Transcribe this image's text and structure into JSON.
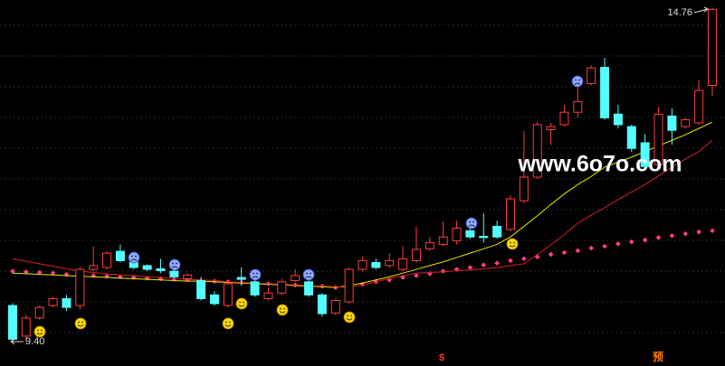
{
  "chart_data": {
    "type": "candlestick",
    "ylim": [
      9.01,
      14.88
    ],
    "up_color": "#ff3c3c",
    "down_color": "#54ffff",
    "open": [
      9.98,
      9.49,
      9.78,
      9.98,
      10.09,
      9.98,
      10.56,
      10.59,
      10.85,
      10.67,
      10.62,
      10.57,
      10.53,
      10.41,
      10.38,
      10.15,
      9.98,
      10.43,
      10.36,
      10.09,
      10.18,
      10.38,
      10.36,
      10.15,
      9.86,
      10.04,
      10.56,
      10.67,
      10.62,
      10.56,
      10.7,
      10.89,
      10.96,
      11.02,
      11.18,
      11.09,
      11.25,
      11.2,
      11.66,
      12.04,
      12.8,
      12.88,
      13.08,
      13.54,
      13.8,
      13.05,
      12.85,
      12.59,
      12.24,
      13.02,
      12.85,
      12.91,
      13.51
    ],
    "high": [
      10.02,
      9.83,
      9.98,
      10.12,
      10.15,
      10.6,
      10.93,
      10.85,
      10.96,
      10.73,
      10.64,
      10.73,
      10.67,
      10.5,
      10.44,
      10.21,
      10.36,
      10.59,
      10.41,
      10.27,
      10.41,
      10.56,
      10.38,
      10.18,
      10.09,
      10.59,
      10.76,
      10.73,
      10.82,
      10.93,
      11.25,
      11.08,
      11.33,
      11.34,
      11.28,
      11.46,
      11.34,
      11.75,
      12.78,
      12.93,
      12.91,
      13.2,
      13.57,
      13.83,
      13.95,
      13.2,
      12.88,
      12.73,
      13.17,
      13.14,
      12.99,
      13.6,
      14.76
    ],
    "low": [
      9.4,
      9.43,
      9.75,
      9.95,
      9.89,
      9.92,
      10.53,
      10.56,
      10.67,
      10.56,
      10.53,
      10.5,
      10.41,
      10.36,
      10.06,
      9.98,
      9.95,
      10.3,
      10.12,
      10.06,
      10.15,
      10.36,
      10.12,
      9.8,
      9.83,
      10.01,
      10.53,
      10.56,
      10.59,
      10.53,
      10.67,
      10.86,
      10.93,
      10.96,
      11.05,
      10.99,
      11.05,
      11.17,
      11.62,
      12.01,
      12.56,
      12.85,
      12.99,
      13.51,
      12.96,
      12.82,
      12.44,
      12.18,
      12.21,
      12.56,
      12.82,
      12.88,
      13.34
    ],
    "close": [
      9.44,
      9.78,
      9.95,
      10.09,
      9.95,
      10.56,
      10.62,
      10.82,
      10.7,
      10.59,
      10.56,
      10.54,
      10.44,
      10.47,
      10.09,
      10.01,
      10.33,
      10.4,
      10.15,
      10.18,
      10.36,
      10.46,
      10.15,
      9.85,
      10.06,
      10.56,
      10.7,
      10.59,
      10.7,
      10.73,
      10.88,
      10.99,
      11.08,
      11.22,
      11.08,
      11.07,
      11.08,
      11.69,
      12.04,
      12.88,
      12.85,
      13.08,
      13.25,
      13.79,
      12.99,
      12.88,
      12.5,
      12.21,
      13.05,
      12.79,
      12.96,
      13.43,
      14.73
    ],
    "lines": [
      {
        "color": "#e8e800",
        "values": [
          10.5,
          10.49,
          10.48,
          10.47,
          10.46,
          10.45,
          10.44,
          10.43,
          10.42,
          10.41,
          10.4,
          10.39,
          10.38,
          10.37,
          10.37,
          10.36,
          10.35,
          10.34,
          10.33,
          10.32,
          10.31,
          10.3,
          10.29,
          10.28,
          10.27,
          10.3,
          10.34,
          10.39,
          10.44,
          10.5,
          10.56,
          10.62,
          10.68,
          10.75,
          10.82,
          10.89,
          10.96,
          11.08,
          11.25,
          11.42,
          11.6,
          11.77,
          11.92,
          12.05,
          12.2,
          12.28,
          12.36,
          12.45,
          12.54,
          12.63,
          12.72,
          12.82,
          12.92
        ]
      },
      {
        "color": "#d42020",
        "values": [
          10.73,
          10.69,
          10.65,
          10.61,
          10.57,
          10.53,
          10.51,
          10.49,
          10.47,
          10.46,
          10.44,
          10.43,
          10.41,
          10.4,
          10.39,
          10.38,
          10.36,
          10.35,
          10.34,
          10.33,
          10.32,
          10.31,
          10.3,
          10.29,
          10.28,
          10.27,
          10.31,
          10.36,
          10.41,
          10.46,
          10.5,
          10.51,
          10.52,
          10.54,
          10.55,
          10.57,
          10.59,
          10.62,
          10.65,
          10.8,
          10.95,
          11.12,
          11.3,
          11.43,
          11.55,
          11.68,
          11.8,
          11.92,
          12.06,
          12.2,
          12.33,
          12.45,
          12.63
        ]
      }
    ],
    "dots": {
      "color": "#ff3c8c",
      "values": [
        10.53,
        10.52,
        10.51,
        10.5,
        10.48,
        10.47,
        10.46,
        10.45,
        10.44,
        10.43,
        10.42,
        10.41,
        10.4,
        10.39,
        10.38,
        10.37,
        10.36,
        10.35,
        10.34,
        10.33,
        10.32,
        10.31,
        10.3,
        10.29,
        10.27,
        10.29,
        10.32,
        10.36,
        10.39,
        10.43,
        10.46,
        10.49,
        10.53,
        10.56,
        10.59,
        10.63,
        10.66,
        10.7,
        10.73,
        10.76,
        10.8,
        10.83,
        10.86,
        10.9,
        10.93,
        10.97,
        11.0,
        11.03,
        11.07,
        11.1,
        11.13,
        11.16,
        11.18
      ]
    },
    "high_label": "14.76",
    "low_label": "9.40",
    "watermark": "www.6o7o.com",
    "markers": [
      "$",
      "预"
    ]
  }
}
